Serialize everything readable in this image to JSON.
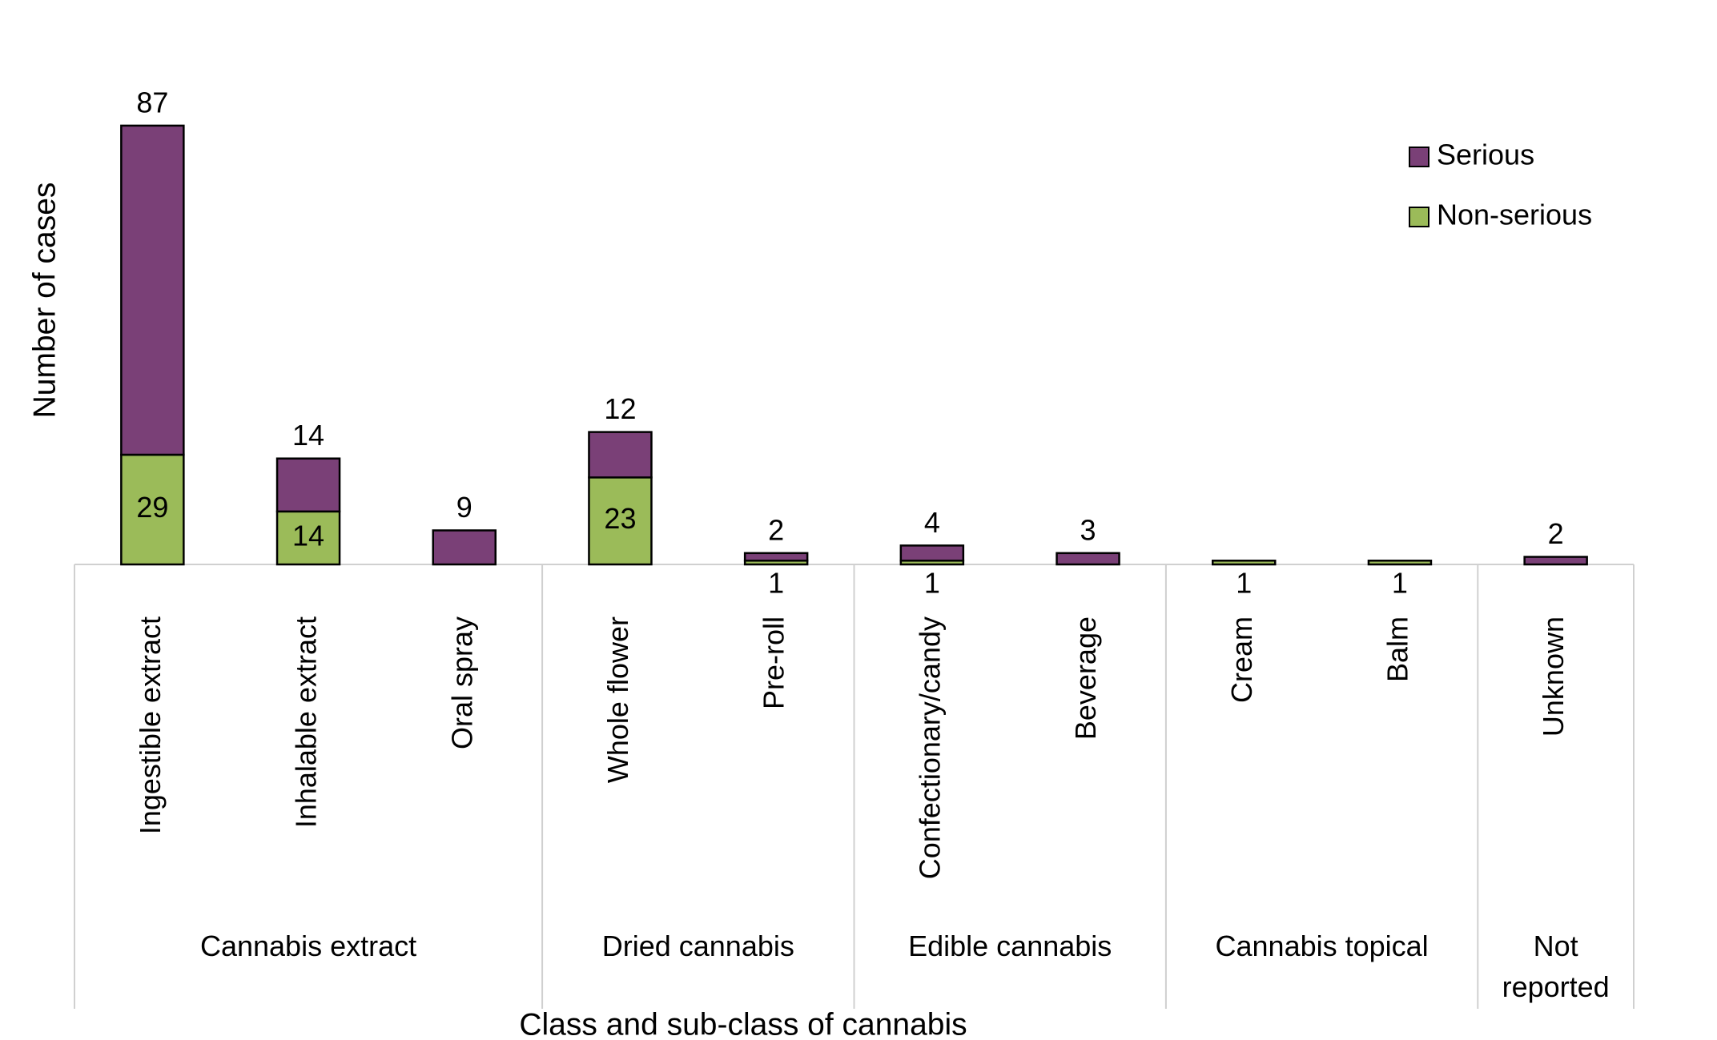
{
  "chart_data": {
    "type": "stacked-bar",
    "x_label": "Class and sub-class of cannabis",
    "y_label": "Number of cases",
    "groups": [
      {
        "name": "Cannabis extract",
        "categories": [
          "Ingestible extract",
          "Inhalable extract",
          "Oral spray"
        ]
      },
      {
        "name": "Dried cannabis",
        "categories": [
          "Whole flower",
          "Pre-roll"
        ]
      },
      {
        "name": "Edible cannabis",
        "categories": [
          "Confectionary/candy",
          "Beverage"
        ]
      },
      {
        "name": "Cannabis topical",
        "categories": [
          "Cream",
          "Balm"
        ]
      },
      {
        "name": "Not reported",
        "categories": [
          "Unknown"
        ]
      }
    ],
    "series": [
      {
        "name": "Non-serious",
        "color": "#9bbb59",
        "values": [
          29,
          14,
          null,
          23,
          1,
          1,
          null,
          1,
          1,
          null
        ]
      },
      {
        "name": "Serious",
        "color": "#7a4077",
        "values": [
          87,
          14,
          9,
          12,
          2,
          4,
          3,
          null,
          null,
          2
        ]
      }
    ],
    "legend_order": [
      "Serious",
      "Non-serious"
    ],
    "legend": "top-right",
    "ylim": [
      0,
      120
    ]
  }
}
